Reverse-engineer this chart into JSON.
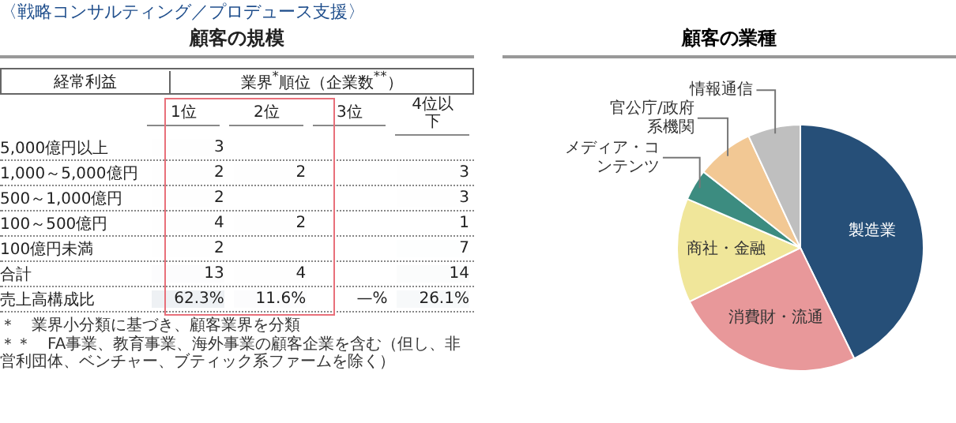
{
  "chart_data": [
    {
      "type": "heatmap",
      "subtitle": "〈戦略コンサルティング／プロデュース支援〉",
      "title": "顧客の規模",
      "ylabel": "経常利益",
      "xlabel": "業界$^{*}$順位（企業数$^{**}$）",
      "categories": [
        "1位",
        "2位",
        "3位",
        "4位以下"
      ],
      "y_categories": [
        "5,000億円以上",
        "1,000～5,000億円",
        "500～1,000億円",
        "100～500億円",
        "100億円未満",
        "合計",
        "売上高構成比"
      ],
      "cells": [
        [
          3,
          null,
          null,
          null
        ],
        [
          2,
          2,
          null,
          3
        ],
        [
          2,
          null,
          null,
          3
        ],
        [
          4,
          2,
          null,
          1
        ],
        [
          2,
          null,
          null,
          7
        ],
        [
          13,
          4,
          null,
          14
        ],
        [
          62.3,
          11.6,
          null,
          26.1
        ]
      ],
      "cell_labels": [
        [
          "3",
          null,
          null,
          null
        ],
        [
          "2",
          "2",
          null,
          "3"
        ],
        [
          "2",
          null,
          null,
          "3"
        ],
        [
          "4",
          "2",
          null,
          "1"
        ],
        [
          "2",
          null,
          null,
          "7"
        ],
        [
          "13",
          "4",
          null,
          "14"
        ],
        [
          "62.3%",
          "11.6%",
          "—%",
          "26.1%"
        ]
      ],
      "annotations": [
        "＊　業界小分類に基づき、顧客業界を分類",
        "＊＊　FA事業、教育事業、海外事業の顧客企業を含む（但し、非営利団体、ベンチャー、ブティック系ファームを除く）"
      ]
    },
    {
      "type": "pie",
      "title": "顧客の業種",
      "categories": [
        "製造業",
        "消費財・流通",
        "商社・金融",
        "メディア・コンテンツ",
        "官公庁/政府系機関",
        "情報通信"
      ],
      "values": [
        42.8,
        25,
        13.7,
        4.1,
        7.5,
        6.9
      ],
      "colors": [
        "#264f78",
        "#e8989a",
        "#f0e69a",
        "#3c8c80",
        "#f2c894",
        "#bfbfbf"
      ]
    }
  ]
}
